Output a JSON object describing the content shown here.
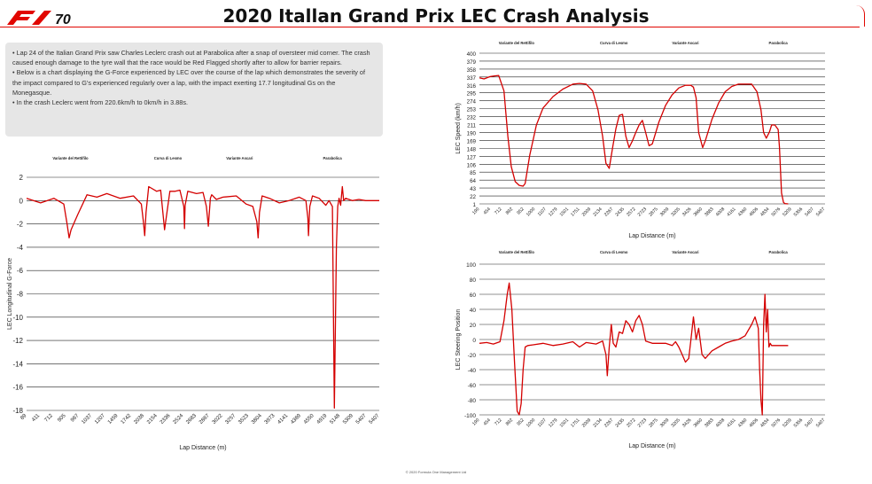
{
  "header": {
    "title": "2020 Itallan Grand Prix LEC Crash Analysis",
    "logo_text": "F1 70"
  },
  "notes": [
    "• Lap 24 of the Italian Grand Prix saw Charles Leclerc crash out at Parabolica after a snap of oversteer mid corner. The crash caused enough damage to the tyre wall that the race would be Red Flagged shortly after to allow for barrier repairs.",
    "• Below is a chart displaying the G-Force experienced by LEC over the course of the lap which demonstrates the severity of the impact compared to G's experienced regularly over a lap, with the impact exerting 17.7 longitudinal Gs on the Monegasque.",
    "• In the crash Leclerc went from 220.6km/h to 0km/h in 3.88s."
  ],
  "footer": {
    "copyright": "© 2020 Formula One Management Ltd"
  },
  "colors": {
    "series": "#d40000",
    "accent": "#e10600",
    "panel": "#e6e6e6"
  },
  "chart_data": [
    {
      "id": "gforce",
      "type": "line",
      "xlabel": "Lap Distance (m)",
      "ylabel": "LEC Longitudinal G-Force",
      "ylim": [
        -18,
        2
      ],
      "yticks": [
        2,
        0,
        -2,
        -4,
        -6,
        -8,
        -10,
        -12,
        -14,
        -16,
        -18
      ],
      "xlim": [
        89,
        5407
      ],
      "xticks": [
        "89",
        "411",
        "712",
        "905",
        "967",
        "1037",
        "1207",
        "1459",
        "1742",
        "2038",
        "2154",
        "2336",
        "2524",
        "2683",
        "2867",
        "3022",
        "3257",
        "3523",
        "3804",
        "3973",
        "4141",
        "4369",
        "4550",
        "4919",
        "5148",
        "5309",
        "5407",
        "5407"
      ],
      "corners": [
        {
          "label": "Variante del Rettifilo",
          "x": 750
        },
        {
          "label": "Curva di Lesmo",
          "x": 2220
        },
        {
          "label": "Variante Ascari",
          "x": 3300
        },
        {
          "label": "Parabolica",
          "x": 4700
        }
      ],
      "x": [
        89,
        300,
        500,
        650,
        700,
        730,
        760,
        860,
        1000,
        1150,
        1300,
        1500,
        1700,
        1820,
        1850,
        1870,
        1890,
        1930,
        2050,
        2110,
        2140,
        2170,
        2250,
        2330,
        2400,
        2460,
        2470,
        2480,
        2520,
        2650,
        2750,
        2800,
        2830,
        2860,
        2880,
        2950,
        3050,
        3250,
        3400,
        3500,
        3560,
        3580,
        3600,
        3640,
        3750,
        3900,
        4050,
        4200,
        4300,
        4330,
        4340,
        4360,
        4400,
        4500,
        4600,
        4650,
        4700,
        4730,
        4760,
        4780,
        4800,
        4825,
        4850,
        4870,
        4900,
        5000,
        5100,
        5200,
        5300,
        5407
      ],
      "values": [
        0.2,
        -0.2,
        0.2,
        -0.3,
        -2.0,
        -3.2,
        -2.5,
        -1.2,
        0.5,
        0.3,
        0.6,
        0.2,
        0.4,
        -0.3,
        -1.8,
        -3.0,
        -1.0,
        1.2,
        0.8,
        0.9,
        -0.8,
        -2.5,
        0.8,
        0.8,
        0.9,
        -0.5,
        -2.4,
        -0.4,
        0.8,
        0.6,
        0.7,
        -0.5,
        -2.2,
        0.2,
        0.5,
        0.1,
        0.3,
        0.4,
        -0.3,
        -0.5,
        -1.8,
        -3.2,
        -1.0,
        0.4,
        0.2,
        -0.2,
        0.0,
        0.3,
        0.0,
        -1.5,
        -3.0,
        -0.5,
        0.4,
        0.2,
        -0.4,
        0.0,
        -0.5,
        -17.8,
        -4.0,
        -0.5,
        0.2,
        -0.4,
        1.2,
        0.0,
        0.2,
        0.0,
        0.1,
        0.0,
        0.0,
        0.0
      ]
    },
    {
      "id": "speed",
      "type": "line",
      "xlabel": "Lap Distance (m)",
      "ylabel": "LEC Speed (km/h)",
      "ylim": [
        1,
        400
      ],
      "yticks": [
        400,
        379,
        358,
        337,
        316,
        295,
        274,
        253,
        232,
        211,
        190,
        169,
        148,
        127,
        106,
        85,
        64,
        43,
        22,
        1
      ],
      "xlim": [
        190,
        5407
      ],
      "xticks": [
        "190",
        "454",
        "712",
        "892",
        "952",
        "1000",
        "1107",
        "1279",
        "1501",
        "1751",
        "2009",
        "2134",
        "2267",
        "2435",
        "2572",
        "2723",
        "2875",
        "3009",
        "3205",
        "3426",
        "3660",
        "3883",
        "4008",
        "4161",
        "4360",
        "4606",
        "4834",
        "5076",
        "5209",
        "5356",
        "5407",
        "5407"
      ],
      "corners": [
        {
          "label": "Variante del Rettifilo",
          "x": 750
        },
        {
          "label": "Curva di Lesmo",
          "x": 2220
        },
        {
          "label": "Variante Ascari",
          "x": 3300
        },
        {
          "label": "Parabolica",
          "x": 4700
        }
      ],
      "x": [
        190,
        260,
        350,
        420,
        480,
        560,
        620,
        670,
        730,
        790,
        850,
        880,
        950,
        1050,
        1150,
        1300,
        1450,
        1600,
        1700,
        1800,
        1900,
        1980,
        2050,
        2100,
        2150,
        2200,
        2250,
        2300,
        2350,
        2400,
        2450,
        2500,
        2550,
        2600,
        2650,
        2700,
        2750,
        2800,
        2900,
        3000,
        3100,
        3200,
        3300,
        3380,
        3420,
        3460,
        3500,
        3560,
        3600,
        3700,
        3800,
        3900,
        4000,
        4100,
        4200,
        4300,
        4380,
        4440,
        4480,
        4520,
        4570,
        4600,
        4650,
        4700,
        4720,
        4750,
        4780,
        4800,
        4850
      ],
      "values": [
        335,
        332,
        338,
        340,
        341,
        300,
        180,
        100,
        60,
        50,
        48,
        55,
        130,
        210,
        255,
        285,
        305,
        318,
        320,
        318,
        300,
        250,
        180,
        108,
        95,
        150,
        200,
        235,
        238,
        180,
        150,
        168,
        190,
        210,
        222,
        190,
        155,
        160,
        218,
        262,
        290,
        308,
        315,
        315,
        310,
        282,
        190,
        150,
        168,
        225,
        268,
        298,
        312,
        318,
        318,
        318,
        298,
        250,
        190,
        175,
        192,
        210,
        210,
        198,
        150,
        30,
        5,
        2,
        1
      ]
    },
    {
      "id": "steering",
      "type": "line",
      "xlabel": "Lap Distance (m)",
      "ylabel": "LEC Steering Position",
      "ylim": [
        -100,
        100
      ],
      "yticks": [
        100,
        80,
        60,
        40,
        20,
        0,
        -20,
        -40,
        -60,
        -80,
        -100
      ],
      "xlim": [
        190,
        5407
      ],
      "xticks": [
        "190",
        "454",
        "712",
        "892",
        "952",
        "1000",
        "1107",
        "1279",
        "1501",
        "1751",
        "2009",
        "2134",
        "2267",
        "2435",
        "2572",
        "2723",
        "2875",
        "3009",
        "3205",
        "3426",
        "3660",
        "3883",
        "4008",
        "4161",
        "4360",
        "4606",
        "4834",
        "5076",
        "5209",
        "5356",
        "5407",
        "5407"
      ],
      "corners": [
        {
          "label": "Variante del Rettifilo",
          "x": 750
        },
        {
          "label": "Curva di Lesmo",
          "x": 2220
        },
        {
          "label": "Variante Ascari",
          "x": 3300
        },
        {
          "label": "Parabolica",
          "x": 4700
        }
      ],
      "x": [
        190,
        300,
        400,
        500,
        560,
        610,
        640,
        680,
        720,
        760,
        790,
        820,
        850,
        880,
        920,
        1000,
        1150,
        1300,
        1450,
        1600,
        1700,
        1800,
        1950,
        2050,
        2100,
        2120,
        2150,
        2180,
        2210,
        2250,
        2300,
        2350,
        2400,
        2450,
        2500,
        2550,
        2600,
        2650,
        2700,
        2800,
        2900,
        3000,
        3100,
        3150,
        3200,
        3250,
        3300,
        3350,
        3380,
        3420,
        3460,
        3500,
        3550,
        3600,
        3650,
        3700,
        3800,
        3900,
        4000,
        4100,
        4200,
        4300,
        4350,
        4400,
        4420,
        4440,
        4460,
        4480,
        4500,
        4520,
        4540,
        4560,
        4580,
        4600,
        4650,
        4700,
        4750,
        4800,
        4850
      ],
      "values": [
        -5,
        -4,
        -6,
        -3,
        25,
        60,
        75,
        40,
        -30,
        -95,
        -100,
        -85,
        -40,
        -10,
        -8,
        -7,
        -5,
        -8,
        -6,
        -3,
        -10,
        -4,
        -6,
        -2,
        -20,
        -48,
        -10,
        20,
        -5,
        -10,
        10,
        8,
        25,
        20,
        10,
        25,
        32,
        20,
        -2,
        -5,
        -5,
        -5,
        -8,
        -3,
        -10,
        -20,
        -30,
        -25,
        -2,
        30,
        0,
        15,
        -20,
        -25,
        -20,
        -15,
        -10,
        -5,
        -2,
        0,
        5,
        20,
        30,
        15,
        -40,
        -80,
        -100,
        20,
        60,
        10,
        40,
        -10,
        -5,
        -8,
        -8,
        -8,
        -8,
        -8,
        -8
      ]
    }
  ]
}
